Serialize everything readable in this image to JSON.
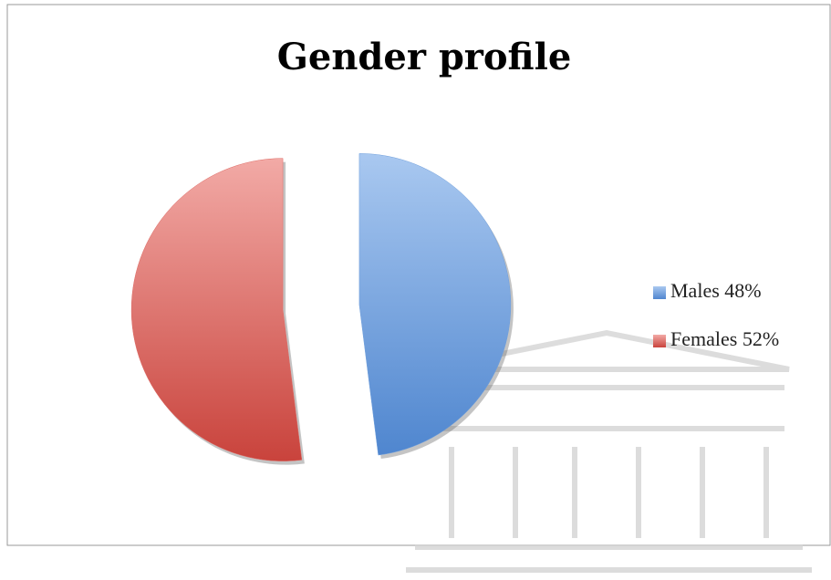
{
  "chart_data": {
    "type": "pie",
    "title": "Gender profile",
    "categories": [
      "Males 48%",
      "Females 52%"
    ],
    "values": [
      48,
      52
    ],
    "colors": [
      "#6f9fdc",
      "#de6a64"
    ],
    "legend": "right"
  }
}
